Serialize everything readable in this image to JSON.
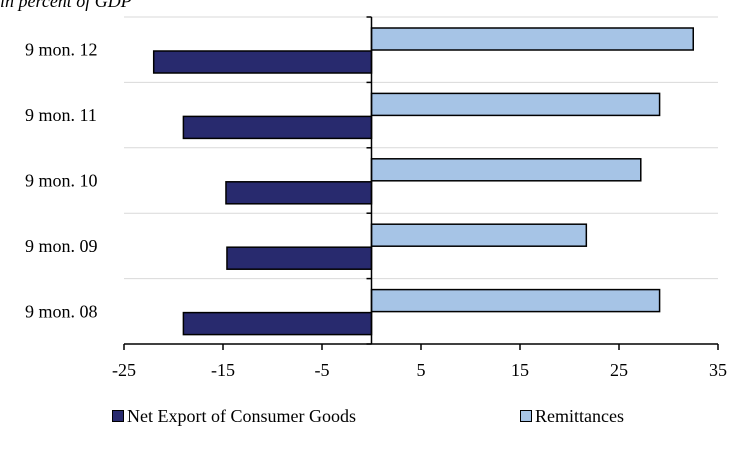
{
  "chart_data": {
    "type": "bar",
    "orientation": "horizontal",
    "subtitle": "in percent of GDP",
    "categories": [
      "9 mon. 12",
      "9 mon. 11",
      "9 mon. 10",
      "9 mon. 09",
      "9 mon. 08"
    ],
    "series": [
      {
        "name": "Remittances",
        "color": "#a6c4e6",
        "values": [
          32.5,
          29.1,
          27.2,
          21.7,
          29.1
        ]
      },
      {
        "name": "Net Export of Consumer Goods",
        "color": "#282a6e",
        "values": [
          -22.0,
          -19.0,
          -14.7,
          -14.6,
          -19.0
        ]
      }
    ],
    "xlim": [
      -25,
      35
    ],
    "xticks": [
      "-25",
      "-15",
      "-5",
      "5",
      "15",
      "25",
      "35"
    ],
    "xtick_values": [
      -25,
      -15,
      -5,
      5,
      15,
      25,
      35
    ],
    "grid": true,
    "legend_position": "bottom"
  }
}
